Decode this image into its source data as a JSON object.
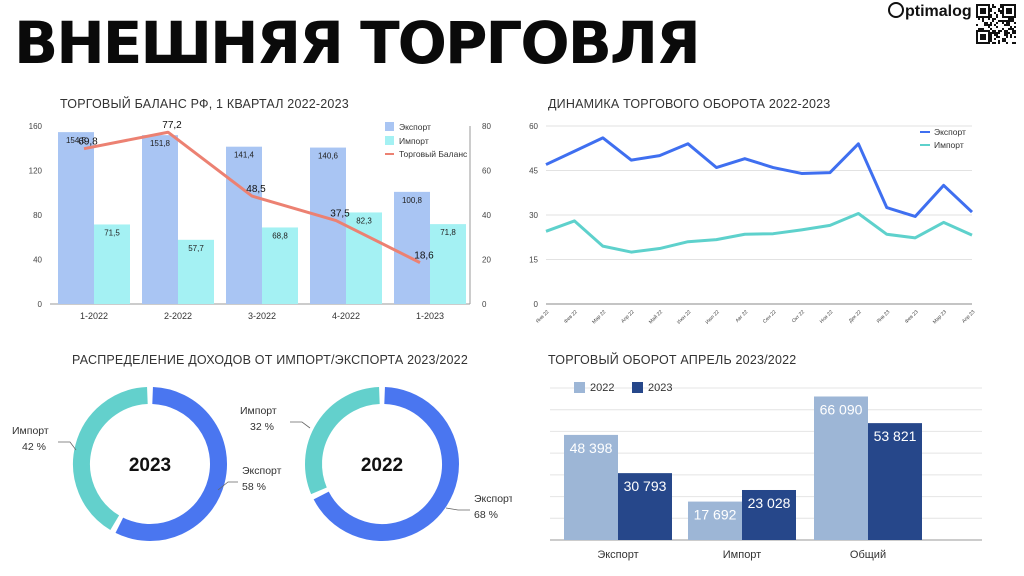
{
  "header": {
    "title": "ВНЕШНЯЯ ТОРГОВЛЯ",
    "brand": "ptimalog"
  },
  "colors": {
    "export_light": "#a9c5f3",
    "import_light": "#a4f1f3",
    "balance": "#ec8172",
    "export_line": "#3f6ff0",
    "import_line": "#5ed1cc",
    "donut_export": "#4a76f0",
    "donut_import": "#63d0cc",
    "bar_2022": "#9db6d6",
    "bar_2023": "#26478a"
  },
  "chart_data": [
    {
      "type": "bar",
      "title": "ТОРГОВЫЙ БАЛАНС РФ, 1 КВАРТАЛ 2022-2023",
      "categories": [
        "1-2022",
        "2-2022",
        "3-2022",
        "4-2022",
        "1-2023"
      ],
      "series": [
        {
          "name": "Экспорт",
          "kind": "bar",
          "axis": "left",
          "values": [
            154.5,
            151.8,
            141.4,
            140.6,
            100.8
          ],
          "labels": [
            "154,5",
            "151,8",
            "141,4",
            "140,6",
            "100,8"
          ]
        },
        {
          "name": "Импорт",
          "kind": "bar",
          "axis": "left",
          "values": [
            71.5,
            57.7,
            68.8,
            82.3,
            71.8
          ],
          "labels": [
            "71,5",
            "57,7",
            "68,8",
            "82,3",
            "71,8"
          ]
        },
        {
          "name": "Торговый Баланс",
          "kind": "line",
          "axis": "right",
          "values": [
            69.8,
            77.2,
            48.5,
            37.5,
            18.6
          ],
          "labels": [
            "69,8",
            "77,2",
            "48,5",
            "37,5",
            "18,6"
          ]
        }
      ],
      "ylim_left": [
        0,
        160
      ],
      "yticks_left": [
        0,
        40,
        80,
        120,
        160
      ],
      "ylim_right": [
        0,
        80
      ],
      "yticks_right": [
        0,
        20,
        40,
        60,
        80
      ],
      "legend": "top-right",
      "grid": false
    },
    {
      "type": "line",
      "title": "ДИНАМИКА ТОРГОВОГО ОБОРОТА 2022-2023",
      "x": [
        "Янв 22",
        "Фев 22",
        "Мар 22",
        "Апр 22",
        "Май 22",
        "Июн 22",
        "Июл 22",
        "Авг 22",
        "Сен 22",
        "Окт 22",
        "Ноя 22",
        "Дек 22",
        "Янв 23",
        "Фев 23",
        "Мар 23",
        "Апр 23"
      ],
      "series": [
        {
          "name": "Экспорт",
          "values": [
            47,
            51.5,
            56,
            48.5,
            50,
            54,
            46,
            49,
            46,
            44,
            44.3,
            54,
            32.5,
            29.5,
            40,
            31
          ]
        },
        {
          "name": "Импорт",
          "values": [
            24.5,
            28,
            19.5,
            17.5,
            18.7,
            21,
            21.7,
            23.5,
            23.7,
            25,
            26.5,
            30.5,
            23.5,
            22.3,
            27.5,
            23.2
          ]
        }
      ],
      "ylim": [
        0,
        60
      ],
      "yticks": [
        0,
        15,
        30,
        45,
        60
      ],
      "grid": true,
      "legend": "top-right"
    },
    {
      "type": "pie",
      "title": "РАСПРЕДЕЛЕНИЕ ДОХОДОВ ОТ ИМПОРТ/ЭКСПОРТА 2023/2022",
      "donuts": [
        {
          "center_label": "2023",
          "slices": [
            {
              "name": "Экспорт",
              "value": 58,
              "label": "Экспорт",
              "pct": "58 %"
            },
            {
              "name": "Импорт",
              "value": 42,
              "label": "Импорт",
              "pct": "42 %"
            }
          ]
        },
        {
          "center_label": "2022",
          "slices": [
            {
              "name": "Экспорт",
              "value": 68,
              "label": "Экспорт",
              "pct": "68 %"
            },
            {
              "name": "Импорт",
              "value": 32,
              "label": "Импорт",
              "pct": "32 %"
            }
          ]
        }
      ]
    },
    {
      "type": "bar",
      "title": "ТОРГОВЫЙ ОБОРОТ АПРЕЛЬ 2023/2022",
      "categories": [
        "Экспорт",
        "Импорт",
        "Общий"
      ],
      "series": [
        {
          "name": "2022",
          "values": [
            48398,
            17692,
            66090
          ],
          "labels": [
            "48 398",
            "17 692",
            "66 090"
          ]
        },
        {
          "name": "2023",
          "values": [
            30793,
            23028,
            53821
          ],
          "labels": [
            "30 793",
            "23 028",
            "53 821"
          ]
        }
      ],
      "ylim": [
        0,
        70000
      ],
      "grid": true,
      "legend": "top-left"
    }
  ]
}
